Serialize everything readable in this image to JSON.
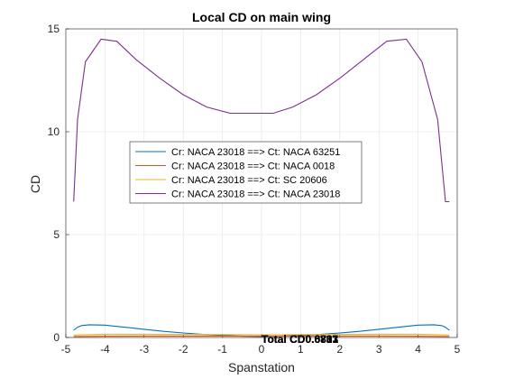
{
  "chart_data": {
    "type": "line",
    "title": "Local CD on main wing",
    "xlabel": "Spanstation",
    "ylabel": "CD",
    "xlim": [
      -5,
      5
    ],
    "ylim": [
      0,
      15
    ],
    "xticks": [
      -5,
      -4,
      -3,
      -2,
      -1,
      0,
      1,
      2,
      3,
      4,
      5
    ],
    "yticks": [
      0,
      5,
      10,
      15
    ],
    "grid": true,
    "legend_position": "center-left",
    "annotations": [
      "Total CD0.0703",
      "Total CD0.6817",
      "Total CD0.6831",
      "Total CD0.6833"
    ],
    "series": [
      {
        "name": "Cr: NACA 23018 ==> Ct: NACA 63251",
        "color": "#0072BD",
        "x": [
          -4.8,
          -4.7,
          -4.6,
          -4.4,
          -4.0,
          -3.5,
          -3.0,
          -2.5,
          -2.0,
          -1.5,
          -1.0,
          -0.5,
          0.0,
          0.5,
          1.0,
          1.5,
          2.0,
          2.5,
          3.0,
          3.5,
          4.0,
          4.4,
          4.6,
          4.7,
          4.8
        ],
        "y": [
          0.35,
          0.5,
          0.58,
          0.62,
          0.6,
          0.5,
          0.4,
          0.3,
          0.22,
          0.15,
          0.1,
          0.06,
          0.05,
          0.06,
          0.1,
          0.15,
          0.22,
          0.3,
          0.4,
          0.5,
          0.6,
          0.62,
          0.58,
          0.5,
          0.35
        ]
      },
      {
        "name": "Cr: NACA 23018 ==> Ct: NACA 0018",
        "color": "#D95319",
        "x": [
          -4.8,
          -4.0,
          -3.0,
          -2.0,
          -1.0,
          0.0,
          1.0,
          2.0,
          3.0,
          4.0,
          4.8
        ],
        "y": [
          0.05,
          0.06,
          0.07,
          0.07,
          0.07,
          0.07,
          0.07,
          0.07,
          0.07,
          0.06,
          0.05
        ]
      },
      {
        "name": "Cr: NACA 23018 ==> Ct: SC 20606",
        "color": "#EDB120",
        "x": [
          -4.8,
          -4.0,
          -3.0,
          -2.0,
          -1.0,
          0.0,
          1.0,
          2.0,
          3.0,
          4.0,
          4.8
        ],
        "y": [
          0.12,
          0.16,
          0.16,
          0.15,
          0.14,
          0.13,
          0.14,
          0.15,
          0.16,
          0.16,
          0.12
        ]
      },
      {
        "name": "Cr: NACA 23018 ==> Ct: NACA 23018",
        "color": "#7E2F8E",
        "x": [
          -4.8,
          -4.7,
          -4.5,
          -4.1,
          -3.7,
          -3.2,
          -2.6,
          -2.0,
          -1.4,
          -0.8,
          -0.3,
          0.3,
          0.8,
          1.4,
          2.0,
          2.6,
          3.2,
          3.7,
          4.1,
          4.5,
          4.7,
          4.8
        ],
        "y": [
          6.6,
          10.6,
          13.4,
          14.5,
          14.4,
          13.5,
          12.6,
          11.8,
          11.2,
          10.9,
          10.9,
          10.9,
          11.2,
          11.8,
          12.6,
          13.5,
          14.4,
          14.5,
          13.4,
          10.6,
          6.6,
          6.6
        ]
      }
    ]
  }
}
